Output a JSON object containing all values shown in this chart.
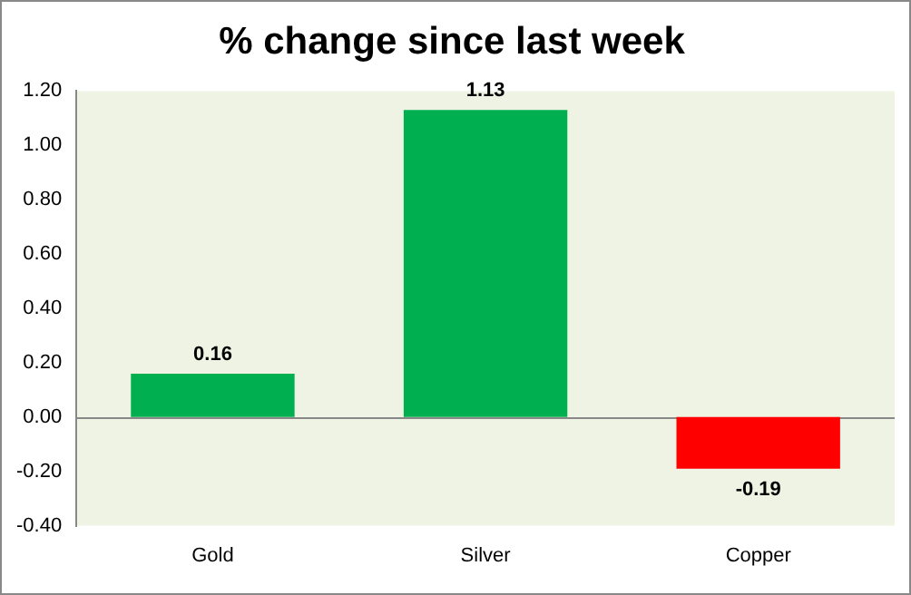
{
  "chart_data": {
    "type": "bar",
    "title": "% change since last week",
    "categories": [
      "Gold",
      "Silver",
      "Copper"
    ],
    "values": [
      0.16,
      1.13,
      -0.19
    ],
    "colors": [
      "#00b050",
      "#00b050",
      "#ff0000"
    ],
    "ylim": [
      -0.4,
      1.2
    ],
    "yticks": [
      {
        "value": -0.4,
        "label": "-0.40"
      },
      {
        "value": -0.2,
        "label": "-0.20"
      },
      {
        "value": 0,
        "label": "0.00"
      },
      {
        "value": 0.2,
        "label": "0.20"
      },
      {
        "value": 0.4,
        "label": "0.40"
      },
      {
        "value": 0.6,
        "label": "0.60"
      },
      {
        "value": 0.8,
        "label": "0.80"
      },
      {
        "value": 1.0,
        "label": "1.00"
      },
      {
        "value": 1.2,
        "label": "1.20"
      }
    ],
    "ref_lines": [
      {
        "axis": "y",
        "value": 0,
        "color": "#888888"
      }
    ],
    "grid": false,
    "data_labels": true
  }
}
